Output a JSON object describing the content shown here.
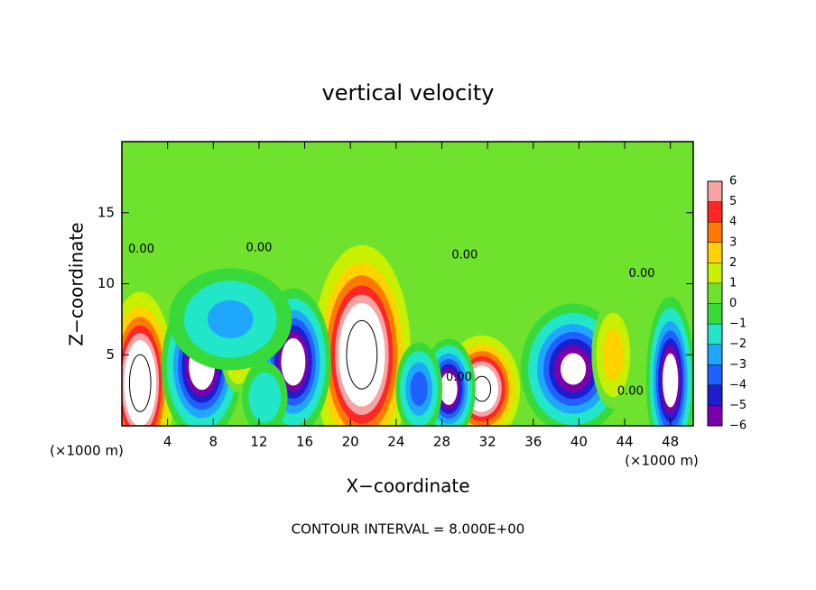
{
  "chart_data": {
    "type": "contour",
    "title": "vertical velocity",
    "x_label": "X−coordinate",
    "y_label": "Z−coordinate",
    "x_unit_left": "(×1000 m)",
    "x_unit_right": "(×1000 m)",
    "footer": "CONTOUR INTERVAL = 8.000E+00",
    "contour_interval": 8,
    "xlim": [
      0,
      50
    ],
    "ylim": [
      0,
      20
    ],
    "xticks": [
      4,
      8,
      12,
      16,
      20,
      24,
      28,
      32,
      36,
      40,
      44,
      48
    ],
    "yticks": [
      5,
      10,
      15
    ],
    "background_color": "#6ee22c",
    "colorbar": {
      "ticks": [
        6,
        5,
        4,
        3,
        2,
        1,
        0,
        {
          "value": -1,
          "label": "−1"
        },
        {
          "value": -2,
          "label": "−2"
        },
        {
          "value": -3,
          "label": "−3"
        },
        {
          "value": -4,
          "label": "−4"
        },
        {
          "value": -5,
          "label": "−5"
        },
        {
          "value": -6,
          "label": "−6"
        }
      ],
      "colors": [
        "#f5a3a3",
        "#ff2626",
        "#ff7800",
        "#ffd200",
        "#c8f000",
        "#6ee22c",
        "#38d93a",
        "#22e6c8",
        "#1fa6ff",
        "#2060ff",
        "#1e1ecf",
        "#7a00aa"
      ]
    },
    "cells": [
      {
        "x": 1.6,
        "z": 3.0,
        "sx": 1.4,
        "sz": 3.0,
        "value": 10
      },
      {
        "x": 21.0,
        "z": 5.0,
        "sx": 2.0,
        "sz": 3.6,
        "value": 10
      },
      {
        "x": 31.5,
        "z": 2.6,
        "sx": 1.6,
        "sz": 1.8,
        "value": 9
      },
      {
        "x": 7.0,
        "z": 4.2,
        "sx": 1.5,
        "sz": 2.2,
        "value": -8
      },
      {
        "x": 15.0,
        "z": 4.5,
        "sx": 1.4,
        "sz": 2.2,
        "value": -8
      },
      {
        "x": 28.6,
        "z": 2.6,
        "sx": 1.0,
        "sz": 1.5,
        "value": -8
      },
      {
        "x": 39.5,
        "z": 4.0,
        "sx": 2.0,
        "sz": 2.0,
        "value": -7
      },
      {
        "x": 48.0,
        "z": 3.2,
        "sx": 0.9,
        "sz": 2.5,
        "value": -8
      },
      {
        "x": 43.0,
        "z": 5.0,
        "sx": 1.0,
        "sz": 2.0,
        "value": 3
      },
      {
        "x": 26.0,
        "z": 2.6,
        "sx": 1.0,
        "sz": 1.6,
        "value": -4
      },
      {
        "x": 10.2,
        "z": 5.0,
        "sx": 0.8,
        "sz": 1.4,
        "value": 3
      },
      {
        "x": 9.5,
        "z": 7.5,
        "sx": 3.0,
        "sz": 2.0,
        "value": -2.5
      },
      {
        "x": 12.5,
        "z": 2.0,
        "sx": 1.2,
        "sz": 1.5,
        "value": -2
      }
    ],
    "contour_labels": [
      {
        "text": "0.00",
        "x": 1.7,
        "z": 12.4
      },
      {
        "text": "0.00",
        "x": 12.0,
        "z": 12.5
      },
      {
        "text": "0.00",
        "x": 30.0,
        "z": 12.0
      },
      {
        "text": "0.00",
        "x": 29.5,
        "z": 3.4
      },
      {
        "text": "0.00",
        "x": 45.5,
        "z": 10.7
      },
      {
        "text": "0.00",
        "x": 44.5,
        "z": 2.4
      }
    ]
  }
}
